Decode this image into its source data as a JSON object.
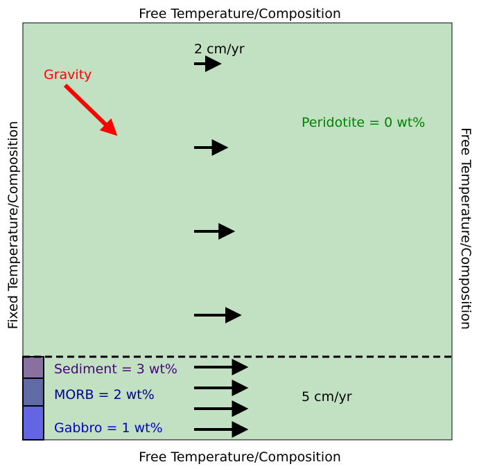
{
  "boundaries": {
    "top": "Free Temperature/Composition",
    "bottom": "Free Temperature/Composition",
    "left": "Fixed Temperature/Composition",
    "right": "Free Temperature/Composition"
  },
  "gravity": {
    "label": "Gravity",
    "color": "#ff0000"
  },
  "velocity": {
    "upper_label": "2 cm/yr",
    "lower_label": "5 cm/yr",
    "upper_relative_lengths": [
      1.0,
      1.2,
      1.4,
      1.6
    ],
    "lower_relative_lengths": [
      1.8,
      1.8,
      1.8,
      1.8
    ]
  },
  "materials": {
    "peridotite": {
      "label": "Peridotite = 0 wt%",
      "color": "#008000",
      "fill": "#c2e0c2"
    },
    "sediment": {
      "label": "Sediment = 3 wt%",
      "color": "#4b0082",
      "fill": "#8870a0"
    },
    "morb": {
      "label": "MORB = 2 wt%",
      "color": "#00008b",
      "fill": "#5f6aa6"
    },
    "gabbro": {
      "label": "Gabbro = 1 wt%",
      "color": "#0000cd",
      "fill": "#6266e2"
    }
  },
  "colors": {
    "arrow": "#000000",
    "frame": "#000000"
  }
}
